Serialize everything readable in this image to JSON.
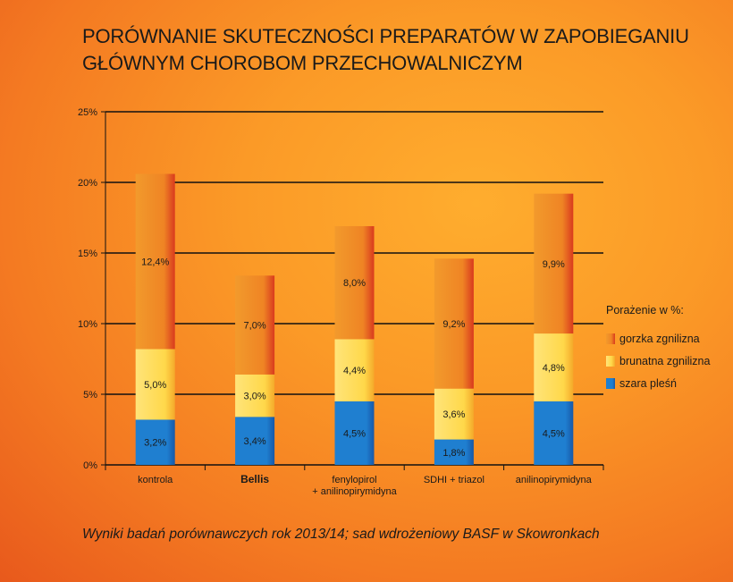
{
  "title_lines": [
    "PORÓWNANIE SKUTECZNOŚCI PREPARATÓW W ZAPOBIEGANIU",
    "GŁÓWNYM CHOROBOM PRZECHOWALNICZYM"
  ],
  "caption": "Wyniki badań porównawczych rok 2013/14; sad wdrożeniowy BASF w Skowronkach",
  "colors": {
    "szara": "#1f7fd0",
    "brunatna": "#ffd84a",
    "gorzka": "#ef8424",
    "gorzka_edge": "#d93a1e"
  },
  "chart_data": {
    "type": "bar",
    "stacked": true,
    "categories": [
      [
        "kontrola"
      ],
      [
        "Bellis"
      ],
      [
        "fenylopirol",
        "+ anilinopirymidyna"
      ],
      [
        "SDHI + triazol"
      ],
      [
        "anilinopirymidyna"
      ]
    ],
    "bold_categories": [
      1
    ],
    "series": [
      {
        "key": "szara",
        "name": "szara pleśń",
        "values": [
          3.2,
          3.4,
          4.5,
          1.8,
          4.5
        ],
        "labels": [
          "3,2%",
          "3,4%",
          "4,5%",
          "1,8%",
          "4,5%"
        ]
      },
      {
        "key": "brunatna",
        "name": "brunatna zgnilizna",
        "values": [
          5.0,
          3.0,
          4.4,
          3.6,
          4.8
        ],
        "labels": [
          "5,0%",
          "3,0%",
          "4,4%",
          "3,6%",
          "4,8%"
        ]
      },
      {
        "key": "gorzka",
        "name": "gorzka zgnilizna",
        "values": [
          12.4,
          7.0,
          8.0,
          9.2,
          9.9
        ],
        "labels": [
          "12,4%",
          "7,0%",
          "8,0%",
          "9,2%",
          "9,9%"
        ]
      }
    ],
    "ylim": [
      0,
      25
    ],
    "yticks": [
      0,
      5,
      10,
      15,
      20,
      25
    ],
    "ytick_labels": [
      "0%",
      "5%",
      "10%",
      "15%",
      "20%",
      "25%"
    ],
    "grid": true,
    "legend": {
      "title": "Porażenie w %:",
      "position": "right",
      "order": [
        "gorzka",
        "brunatna",
        "szara"
      ]
    }
  }
}
